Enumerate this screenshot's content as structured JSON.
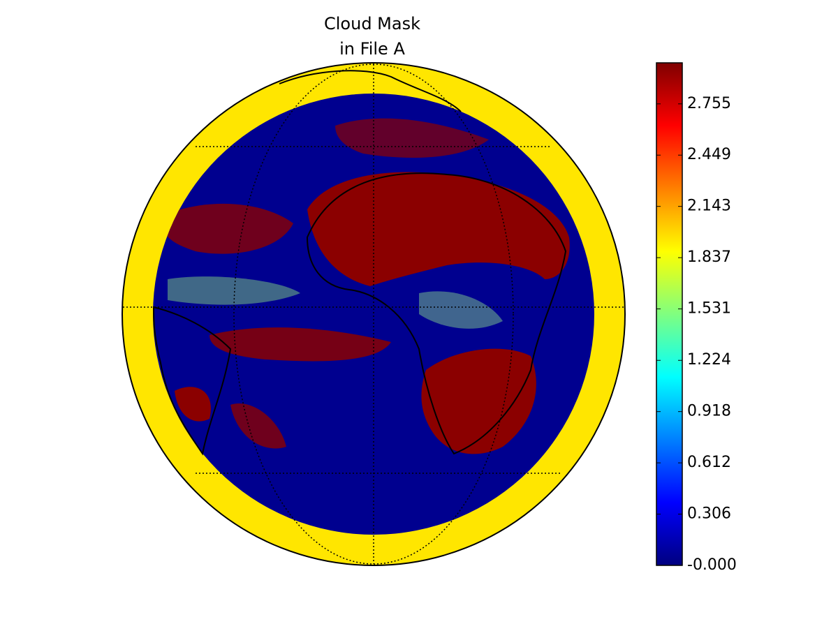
{
  "title": [
    "Cloud Mask",
    "in File A"
  ],
  "colorbar": {
    "lim": [
      0,
      3
    ],
    "ticks": [
      {
        "value": 0,
        "label": "-0.000"
      },
      0.306,
      0.612,
      0.918,
      1.224,
      1.531,
      1.837,
      2.143,
      2.449,
      2.755
    ]
  }
}
